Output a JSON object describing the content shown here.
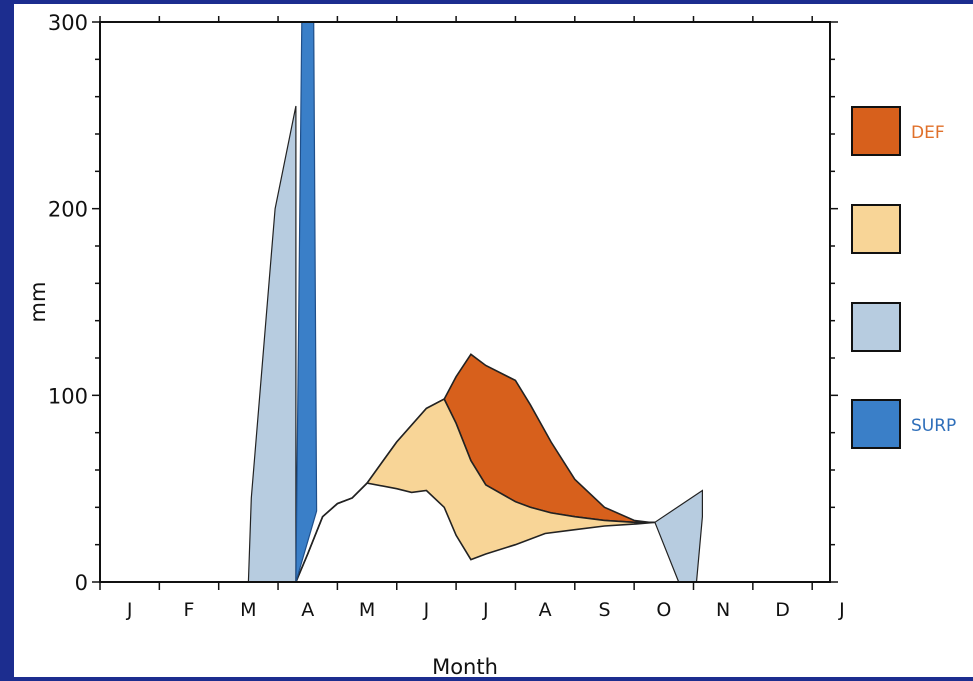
{
  "chart_data": {
    "type": "area",
    "xlabel": "Month",
    "ylabel": "mm",
    "ylim": [
      0,
      300
    ],
    "yticks": [
      0,
      100,
      200,
      300
    ],
    "xlim": [
      0,
      12.3
    ],
    "xtick_labels": [
      "J",
      "F",
      "M",
      "A",
      "M",
      "J",
      "J",
      "A",
      "S",
      "O",
      "N",
      "D",
      "J"
    ],
    "legend_placement": "right",
    "legend": [
      {
        "label": "DEF",
        "color": "#d7601c",
        "label_color": "#e0702a"
      },
      {
        "label": "",
        "color": "#f8d597",
        "label_color": "#fbe3b8"
      },
      {
        "label": "",
        "color": "#b7cce0",
        "label_color": "#c5d6e8"
      },
      {
        "label": "SURP",
        "color": "#3a7fc8",
        "label_color": "#2f6fba"
      }
    ],
    "series": [
      {
        "key": "potential_et",
        "x": [
          3.3,
          3.5,
          3.75,
          4.0,
          4.25,
          4.5,
          5.0,
          5.5,
          5.8,
          6.0,
          6.25,
          6.5,
          7.0,
          7.25,
          7.6,
          8.0,
          8.5,
          9.0,
          9.25,
          9.35
        ],
        "y": [
          0,
          15,
          35,
          42,
          45,
          53,
          75,
          93,
          98,
          110,
          122,
          116,
          108,
          95,
          75,
          55,
          40,
          33,
          32,
          32
        ]
      },
      {
        "key": "actual_et",
        "x": [
          3.3,
          3.5,
          3.75,
          4.0,
          4.25,
          4.5,
          5.0,
          5.5,
          5.8,
          6.0,
          6.25,
          6.5,
          7.0,
          7.25,
          7.6,
          8.0,
          8.5,
          9.0,
          9.25,
          9.35
        ],
        "y": [
          0,
          15,
          35,
          42,
          45,
          53,
          75,
          93,
          98,
          85,
          65,
          52,
          43,
          40,
          37,
          35,
          33,
          32,
          32,
          32
        ]
      },
      {
        "key": "soil_moisture_use_lower",
        "x": [
          3.3,
          3.5,
          3.75,
          4.0,
          4.25,
          4.5,
          5.0,
          5.25,
          5.5,
          5.8,
          6.0,
          6.25,
          6.5,
          7.0,
          7.5,
          8.0,
          8.5,
          9.0,
          9.35
        ],
        "y": [
          0,
          15,
          35,
          42,
          45,
          53,
          50,
          48,
          49,
          40,
          25,
          12,
          15,
          20,
          26,
          28,
          30,
          31,
          32
        ]
      },
      {
        "key": "surplus_bar",
        "x": [
          3.3,
          3.4,
          3.6,
          3.65,
          3.3
        ],
        "y": [
          0,
          300,
          300,
          38,
          0
        ]
      },
      {
        "key": "recharge_march",
        "x": [
          2.5,
          2.55,
          2.95,
          3.3,
          3.3
        ],
        "y": [
          0,
          45,
          200,
          255,
          0
        ]
      },
      {
        "key": "recharge_oct_nov",
        "x": [
          9.35,
          9.75,
          10.05,
          10.15,
          10.15
        ],
        "y": [
          32,
          0,
          0,
          35,
          49
        ]
      }
    ]
  }
}
